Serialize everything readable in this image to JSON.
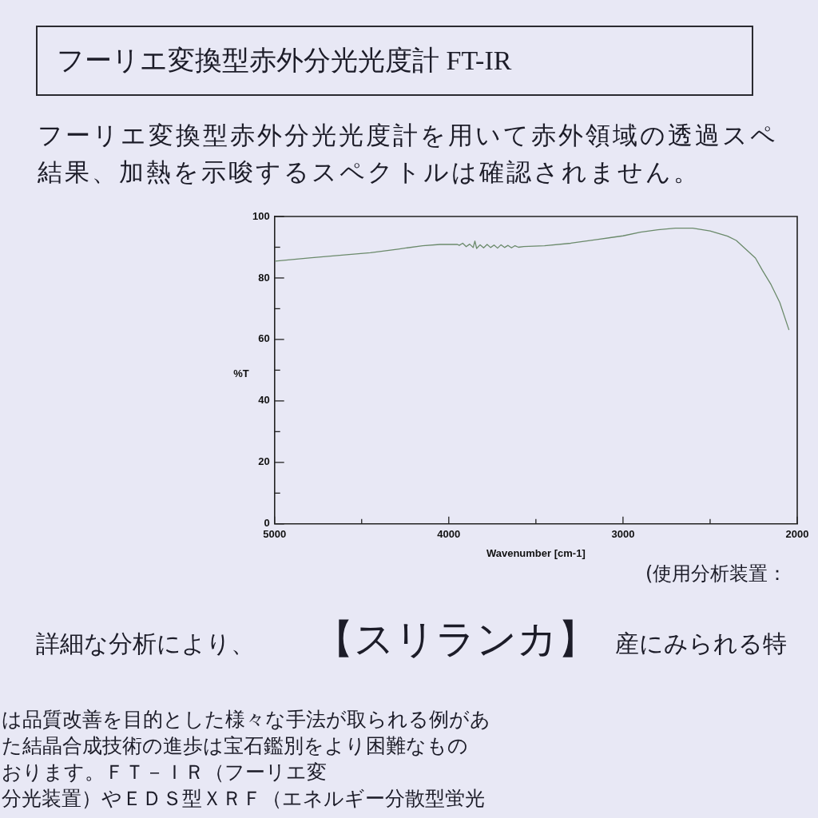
{
  "chart_data": {
    "type": "line",
    "title": "フーリエ変換型赤外分光光度計 FT-IR",
    "subtitle": "フーリエ変換型赤外分光光度計を用いて赤外領域の透過スペ",
    "xlabel": "Wavenumber [cm-1]",
    "ylabel": "%T",
    "x": [
      4995,
      4800,
      4600,
      4450,
      4290,
      4150,
      4050,
      3950,
      3940,
      3920,
      3900,
      3880,
      3860,
      3850,
      3840,
      3820,
      3800,
      3780,
      3760,
      3740,
      3720,
      3700,
      3680,
      3660,
      3640,
      3620,
      3600,
      3570,
      3450,
      3300,
      3150,
      3000,
      2900,
      2800,
      2700,
      2600,
      2500,
      2400,
      2350,
      2240,
      2200,
      2150,
      2100,
      2048
    ],
    "series": [
      {
        "color": "#6b8a6b",
        "values": [
          85.5,
          86.5,
          87.5,
          88.2,
          89.4,
          90.5,
          90.9,
          90.9,
          90.6,
          91.3,
          90.2,
          91.0,
          89.9,
          92.0,
          89.6,
          90.8,
          89.8,
          90.9,
          89.9,
          90.7,
          89.7,
          90.8,
          89.9,
          90.6,
          89.8,
          90.5,
          90.0,
          90.2,
          90.5,
          91.3,
          92.5,
          93.7,
          94.9,
          95.7,
          96.2,
          96.2,
          95.3,
          93.6,
          92.2,
          86.5,
          82.5,
          77.8,
          72.0,
          63.2
        ]
      }
    ],
    "xlim": [
      5000,
      2000
    ],
    "ylim": [
      0,
      100
    ],
    "xticks": [
      5000,
      {
        "value": 4500,
        "label": null
      },
      4000,
      {
        "value": 3500,
        "label": null
      },
      3000,
      {
        "value": 2500,
        "label": null
      },
      2000
    ],
    "yticks": [
      0,
      {
        "value": 10,
        "label": null
      },
      20,
      {
        "value": 30,
        "label": null
      },
      40,
      {
        "value": 50,
        "label": null
      },
      60,
      {
        "value": 70,
        "label": null
      },
      80,
      {
        "value": 90,
        "label": null
      },
      100
    ],
    "marker": "none",
    "annotations": [
      "結果、加熱を示唆するスペクトルは確認されません。",
      "(使用分析装置：",
      "詳細な分析により、",
      "【スリランカ】",
      "産にみられる特",
      "は品質改善を目的とした様々な手法が取られる例があ",
      "た結晶合成技術の進歩は宝石鑑別をより困難なもの",
      "おります。ＦＴ－ＩＲ（フーリエ変",
      "分光装置）やＥＤＳ型ＸＲＦ（エネルギー分散型蛍光"
    ]
  }
}
